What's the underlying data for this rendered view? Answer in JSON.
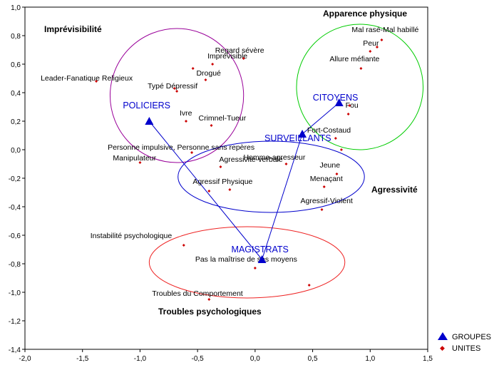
{
  "chart_data": {
    "type": "scatter",
    "xlim": [
      -2.0,
      1.5
    ],
    "ylim": [
      -1.4,
      1.0
    ],
    "x_ticks": [
      "-2,0",
      "-1,5",
      "-1,0",
      "-0,5",
      "0,0",
      "0,5",
      "1,0",
      "1,5"
    ],
    "y_ticks": [
      "1,0",
      "0,8",
      "0,6",
      "0,4",
      "0,2",
      "0,0",
      "-0,2",
      "-0,4",
      "-0,6",
      "-0,8",
      "-1,0",
      "-1,2",
      "-1,4"
    ],
    "legend_position": "bottom-right",
    "legend": [
      "GROUPES",
      "UNITES"
    ],
    "colors": {
      "groupes": "#0000cc",
      "unites": "#cc0000"
    },
    "groupes": [
      {
        "label": "POLICIERS",
        "x": -0.92,
        "y": 0.2
      },
      {
        "label": "CITOYENS",
        "x": 0.73,
        "y": 0.33
      },
      {
        "label": "SURVEILLANTS",
        "x": 0.41,
        "y": 0.11
      },
      {
        "label": "MAGISTRATS",
        "x": 0.06,
        "y": -0.77
      }
    ],
    "unites": [
      {
        "label": "Mal rasé-Mal habillé",
        "x": 1.1,
        "y": 0.77
      },
      {
        "label": "Peur",
        "x": 1.0,
        "y": 0.69
      },
      {
        "label": "Allure méfiante",
        "x": 0.92,
        "y": 0.57
      },
      {
        "label": "Fou",
        "x": 0.81,
        "y": 0.25
      },
      {
        "label": "Fort-Costaud",
        "x": 0.7,
        "y": 0.08
      },
      {
        "label": "Jeune",
        "x": 0.71,
        "y": -0.17
      },
      {
        "label": "Menaçant",
        "x": 0.6,
        "y": -0.26
      },
      {
        "label": "Agressif-Violent",
        "x": 0.58,
        "y": -0.42
      },
      {
        "label": "Homme-agresseur",
        "x": 0.27,
        "y": -0.1
      },
      {
        "label": "Regard sévère",
        "x": -0.1,
        "y": 0.64
      },
      {
        "label": "Imprévisible",
        "x": -0.37,
        "y": 0.6
      },
      {
        "label": "Drogué",
        "x": -0.43,
        "y": 0.49
      },
      {
        "label": "Leader-Fanatique Religieux",
        "x": -1.38,
        "y": 0.48
      },
      {
        "label": "Typé Dépressif",
        "x": -0.68,
        "y": 0.41
      },
      {
        "label": "Ivre",
        "x": -0.6,
        "y": 0.2
      },
      {
        "label": "Crimnel-Tueur",
        "x": -0.38,
        "y": 0.17
      },
      {
        "label": "Personne impulsive, Personne sans repères",
        "x": -0.55,
        "y": -0.02
      },
      {
        "label": "Manipulateur",
        "x": -1.0,
        "y": -0.09
      },
      {
        "label": "Agressivité-verbale",
        "x": -0.3,
        "y": -0.12
      },
      {
        "label": "Agressif Physique",
        "x": -0.22,
        "y": -0.28
      },
      {
        "label": "Instabilité psychologique",
        "x": -0.62,
        "y": -0.67
      },
      {
        "label": "Pas la maîtrise de ses moyens",
        "x": 0.0,
        "y": -0.83
      },
      {
        "label": "Troubles du Comportement",
        "x": -0.4,
        "y": -1.05
      }
    ],
    "extra_points": [
      {
        "x": 1.06,
        "y": 0.72
      },
      {
        "x": 0.82,
        "y": 0.31
      },
      {
        "x": 0.75,
        "y": 0.0
      },
      {
        "x": -0.7,
        "y": 0.43
      },
      {
        "x": -0.4,
        "y": -0.29
      },
      {
        "x": -0.54,
        "y": 0.57
      },
      {
        "x": 0.47,
        "y": -0.95
      }
    ],
    "zones": [
      {
        "label": "Imprévisibilité",
        "cx": -0.68,
        "cy": 0.38,
        "rx": 0.58,
        "ry": 0.47,
        "color": "#990099"
      },
      {
        "label": "Apparence physique",
        "cx": 0.91,
        "cy": 0.44,
        "rx": 0.55,
        "ry": 0.44,
        "color": "#00cc00"
      },
      {
        "label": "Agressivité",
        "cx": 0.14,
        "cy": -0.19,
        "rx": 0.81,
        "ry": 0.25,
        "color": "#0000cc"
      },
      {
        "label": "Troubles psychologiques",
        "cx": -0.07,
        "cy": -0.79,
        "rx": 0.85,
        "ry": 0.25,
        "color": "#ee2222"
      }
    ]
  }
}
